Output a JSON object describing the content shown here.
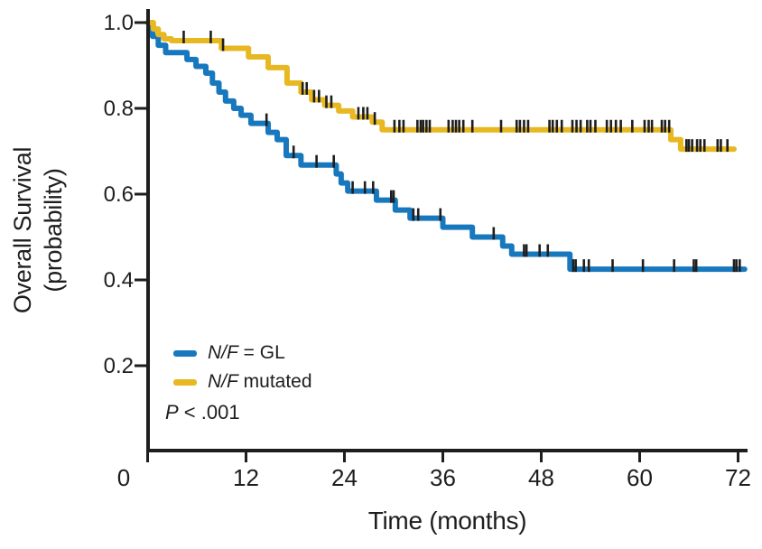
{
  "figure": {
    "ylabel_line1": "Overall Survival",
    "ylabel_line2": "(probability)",
    "xlabel": "Time (months)"
  },
  "legend": {
    "items": [
      {
        "key": "gl",
        "gene": "N/F",
        "rest": " = GL",
        "color": "#1878be"
      },
      {
        "key": "mutated",
        "gene": "N/F",
        "rest": " mutated",
        "color": "#e7b821"
      }
    ],
    "p_value": {
      "symbol": "P",
      "rest": " < .001"
    }
  },
  "chart_data": {
    "type": "line",
    "subtype": "kaplan-meier-step",
    "title": "",
    "xlabel": "Time (months)",
    "ylabel": "Overall Survival (probability)",
    "xlim": [
      0,
      72
    ],
    "ylim": [
      0,
      1.0
    ],
    "x_ticks": [
      0,
      12,
      24,
      36,
      48,
      60,
      72
    ],
    "y_ticks": [
      0.2,
      0.4,
      0.6,
      0.8,
      1.0
    ],
    "y_tick_labels": [
      "0.2",
      "0.4",
      "0.6",
      "0.8",
      "1.0"
    ],
    "grid": false,
    "legend_position": "lower-left-inside",
    "p_value_text": "P < .001",
    "axis_color": "#1e1e1e",
    "series": [
      {
        "name": "N/F = GL",
        "color": "#1878be",
        "end_time": 72.8,
        "steps": [
          [
            0,
            1.0
          ],
          [
            0.6,
            0.968
          ],
          [
            1.3,
            0.947
          ],
          [
            2.2,
            0.93
          ],
          [
            4.8,
            0.914
          ],
          [
            5.9,
            0.898
          ],
          [
            7.1,
            0.882
          ],
          [
            7.9,
            0.859
          ],
          [
            8.7,
            0.838
          ],
          [
            9.5,
            0.817
          ],
          [
            10.5,
            0.8
          ],
          [
            11.4,
            0.784
          ],
          [
            12.6,
            0.765
          ],
          [
            14.7,
            0.744
          ],
          [
            15.8,
            0.727
          ],
          [
            16.9,
            0.69
          ],
          [
            18.7,
            0.668
          ],
          [
            23.0,
            0.647
          ],
          [
            23.6,
            0.626
          ],
          [
            24.4,
            0.607
          ],
          [
            27.9,
            0.586
          ],
          [
            30.2,
            0.563
          ],
          [
            32.0,
            0.544
          ],
          [
            36.0,
            0.523
          ],
          [
            39.6,
            0.5
          ],
          [
            43.3,
            0.479
          ],
          [
            44.4,
            0.46
          ],
          [
            51.5,
            0.425
          ]
        ],
        "censor_times": [
          14.5,
          17.8,
          20.6,
          22.7,
          25.0,
          26.5,
          27.5,
          29.7,
          30.0,
          32.4,
          33.0,
          35.7,
          42.2,
          45.9,
          46.2,
          47.8,
          48.8,
          51.9,
          52.2,
          53.2,
          53.8,
          56.7,
          60.4,
          64.2,
          66.6,
          66.9,
          71.5,
          71.8,
          72.2
        ]
      },
      {
        "name": "N/F mutated",
        "color": "#e7b821",
        "end_time": 71.5,
        "steps": [
          [
            0,
            1.0
          ],
          [
            0.7,
            0.985
          ],
          [
            1.3,
            0.972
          ],
          [
            2.0,
            0.962
          ],
          [
            2.9,
            0.958
          ],
          [
            9.0,
            0.94
          ],
          [
            12.3,
            0.92
          ],
          [
            14.7,
            0.895
          ],
          [
            17.0,
            0.859
          ],
          [
            18.7,
            0.838
          ],
          [
            20.0,
            0.82
          ],
          [
            21.6,
            0.807
          ],
          [
            23.3,
            0.794
          ],
          [
            25.0,
            0.78
          ],
          [
            27.4,
            0.768
          ],
          [
            28.6,
            0.75
          ],
          [
            63.8,
            0.727
          ],
          [
            65.0,
            0.705
          ]
        ],
        "censor_times": [
          4.4,
          7.7,
          9.2,
          18.9,
          19.4,
          20.3,
          20.9,
          21.8,
          22.4,
          25.7,
          26.3,
          26.8,
          27.7,
          30.1,
          30.7,
          31.2,
          32.9,
          33.3,
          33.6,
          34.0,
          34.4,
          36.7,
          37.2,
          37.6,
          38.0,
          38.5,
          39.6,
          43.1,
          45.0,
          45.4,
          45.9,
          46.4,
          49.0,
          49.4,
          49.9,
          50.5,
          51.8,
          52.3,
          52.8,
          53.6,
          54.0,
          54.6,
          56.0,
          56.5,
          57.1,
          57.7,
          59.1,
          60.6,
          61.1,
          61.5,
          62.7,
          63.1,
          63.6,
          65.7,
          66.0,
          66.4,
          67.0,
          67.4,
          67.9,
          69.5,
          69.9,
          70.7
        ]
      }
    ]
  }
}
